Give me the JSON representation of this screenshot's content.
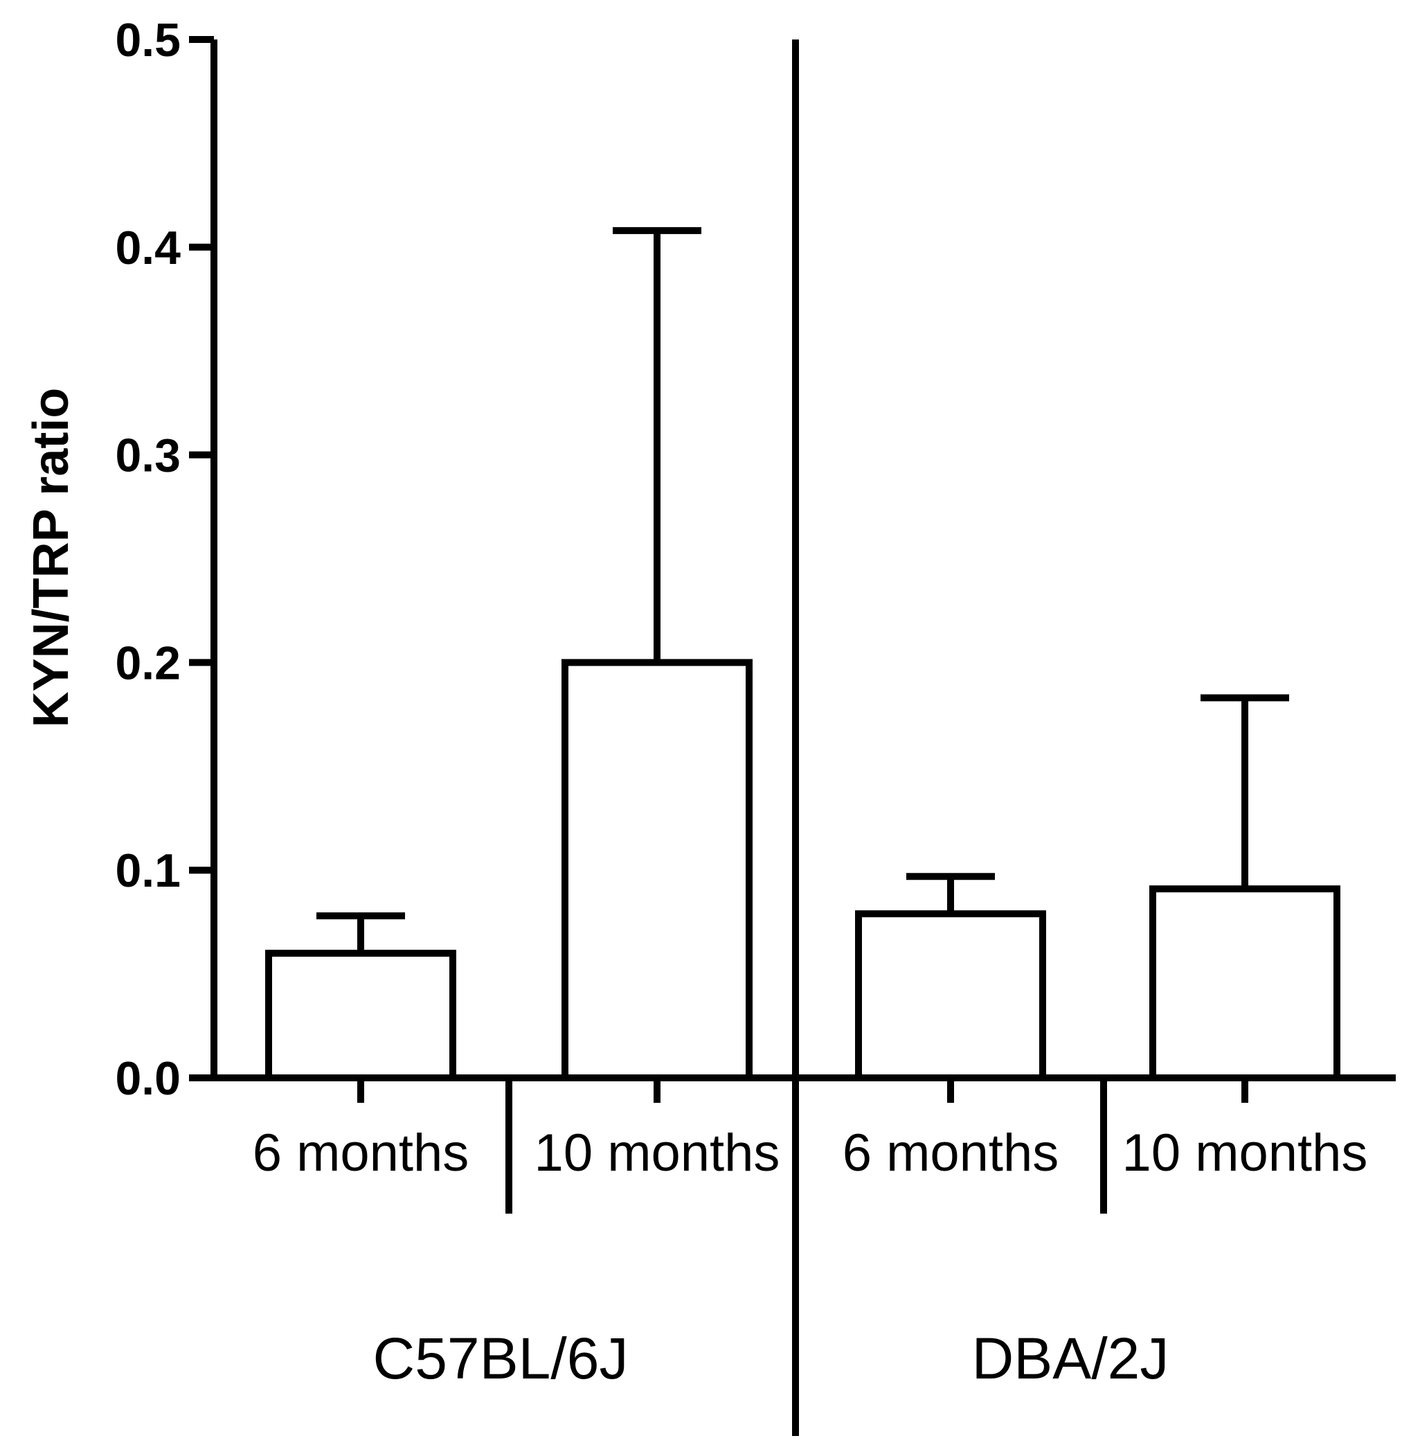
{
  "chart_data": {
    "type": "bar",
    "title": "",
    "xlabel": "",
    "ylabel": "KYN/TRP ratio",
    "ylim": [
      0,
      0.5
    ],
    "yticks": [
      "0.0",
      "0.1",
      "0.2",
      "0.3",
      "0.4",
      "0.5"
    ],
    "ytick_values": [
      0,
      0.1,
      0.2,
      0.3,
      0.4,
      0.5
    ],
    "grid": false,
    "groups": [
      {
        "name": "C57BL/6J",
        "categories": [
          "6 months",
          "10 months"
        ],
        "values": [
          0.06,
          0.2
        ],
        "error_upper": [
          0.078,
          0.408
        ]
      },
      {
        "name": "DBA/2J",
        "categories": [
          "6 months",
          "10 months"
        ],
        "values": [
          0.079,
          0.091
        ],
        "error_upper": [
          0.097,
          0.183
        ]
      }
    ],
    "bar_fill": "#ffffff",
    "stroke_color": "#000000"
  }
}
